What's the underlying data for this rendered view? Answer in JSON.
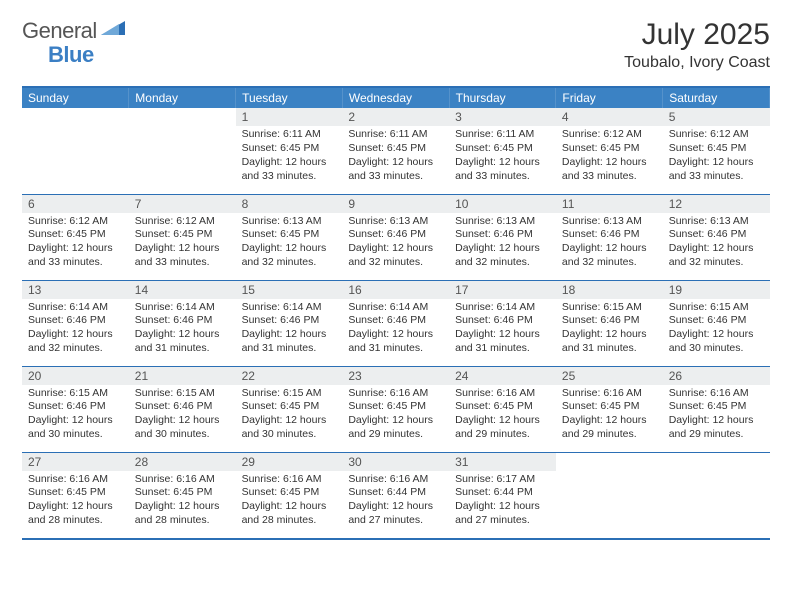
{
  "brand": {
    "part1": "General",
    "part2": "Blue"
  },
  "title": "July 2025",
  "location": "Toubalo, Ivory Coast",
  "colors": {
    "header_bg": "#3b82c4",
    "border": "#2b6fb5",
    "daynum_bg": "#eceeef",
    "brand_blue": "#3b7fc4"
  },
  "weekdays": [
    "Sunday",
    "Monday",
    "Tuesday",
    "Wednesday",
    "Thursday",
    "Friday",
    "Saturday"
  ],
  "labels": {
    "sunrise": "Sunrise:",
    "sunset": "Sunset:",
    "daylight": "Daylight:"
  },
  "weeks": [
    [
      {
        "blank": true
      },
      {
        "blank": true
      },
      {
        "n": "1",
        "sr": "6:11 AM",
        "ss": "6:45 PM",
        "dl": "12 hours and 33 minutes."
      },
      {
        "n": "2",
        "sr": "6:11 AM",
        "ss": "6:45 PM",
        "dl": "12 hours and 33 minutes."
      },
      {
        "n": "3",
        "sr": "6:11 AM",
        "ss": "6:45 PM",
        "dl": "12 hours and 33 minutes."
      },
      {
        "n": "4",
        "sr": "6:12 AM",
        "ss": "6:45 PM",
        "dl": "12 hours and 33 minutes."
      },
      {
        "n": "5",
        "sr": "6:12 AM",
        "ss": "6:45 PM",
        "dl": "12 hours and 33 minutes."
      }
    ],
    [
      {
        "n": "6",
        "sr": "6:12 AM",
        "ss": "6:45 PM",
        "dl": "12 hours and 33 minutes."
      },
      {
        "n": "7",
        "sr": "6:12 AM",
        "ss": "6:45 PM",
        "dl": "12 hours and 33 minutes."
      },
      {
        "n": "8",
        "sr": "6:13 AM",
        "ss": "6:45 PM",
        "dl": "12 hours and 32 minutes."
      },
      {
        "n": "9",
        "sr": "6:13 AM",
        "ss": "6:46 PM",
        "dl": "12 hours and 32 minutes."
      },
      {
        "n": "10",
        "sr": "6:13 AM",
        "ss": "6:46 PM",
        "dl": "12 hours and 32 minutes."
      },
      {
        "n": "11",
        "sr": "6:13 AM",
        "ss": "6:46 PM",
        "dl": "12 hours and 32 minutes."
      },
      {
        "n": "12",
        "sr": "6:13 AM",
        "ss": "6:46 PM",
        "dl": "12 hours and 32 minutes."
      }
    ],
    [
      {
        "n": "13",
        "sr": "6:14 AM",
        "ss": "6:46 PM",
        "dl": "12 hours and 32 minutes."
      },
      {
        "n": "14",
        "sr": "6:14 AM",
        "ss": "6:46 PM",
        "dl": "12 hours and 31 minutes."
      },
      {
        "n": "15",
        "sr": "6:14 AM",
        "ss": "6:46 PM",
        "dl": "12 hours and 31 minutes."
      },
      {
        "n": "16",
        "sr": "6:14 AM",
        "ss": "6:46 PM",
        "dl": "12 hours and 31 minutes."
      },
      {
        "n": "17",
        "sr": "6:14 AM",
        "ss": "6:46 PM",
        "dl": "12 hours and 31 minutes."
      },
      {
        "n": "18",
        "sr": "6:15 AM",
        "ss": "6:46 PM",
        "dl": "12 hours and 31 minutes."
      },
      {
        "n": "19",
        "sr": "6:15 AM",
        "ss": "6:46 PM",
        "dl": "12 hours and 30 minutes."
      }
    ],
    [
      {
        "n": "20",
        "sr": "6:15 AM",
        "ss": "6:46 PM",
        "dl": "12 hours and 30 minutes."
      },
      {
        "n": "21",
        "sr": "6:15 AM",
        "ss": "6:46 PM",
        "dl": "12 hours and 30 minutes."
      },
      {
        "n": "22",
        "sr": "6:15 AM",
        "ss": "6:45 PM",
        "dl": "12 hours and 30 minutes."
      },
      {
        "n": "23",
        "sr": "6:16 AM",
        "ss": "6:45 PM",
        "dl": "12 hours and 29 minutes."
      },
      {
        "n": "24",
        "sr": "6:16 AM",
        "ss": "6:45 PM",
        "dl": "12 hours and 29 minutes."
      },
      {
        "n": "25",
        "sr": "6:16 AM",
        "ss": "6:45 PM",
        "dl": "12 hours and 29 minutes."
      },
      {
        "n": "26",
        "sr": "6:16 AM",
        "ss": "6:45 PM",
        "dl": "12 hours and 29 minutes."
      }
    ],
    [
      {
        "n": "27",
        "sr": "6:16 AM",
        "ss": "6:45 PM",
        "dl": "12 hours and 28 minutes."
      },
      {
        "n": "28",
        "sr": "6:16 AM",
        "ss": "6:45 PM",
        "dl": "12 hours and 28 minutes."
      },
      {
        "n": "29",
        "sr": "6:16 AM",
        "ss": "6:45 PM",
        "dl": "12 hours and 28 minutes."
      },
      {
        "n": "30",
        "sr": "6:16 AM",
        "ss": "6:44 PM",
        "dl": "12 hours and 27 minutes."
      },
      {
        "n": "31",
        "sr": "6:17 AM",
        "ss": "6:44 PM",
        "dl": "12 hours and 27 minutes."
      },
      {
        "blank": true
      },
      {
        "blank": true
      }
    ]
  ]
}
